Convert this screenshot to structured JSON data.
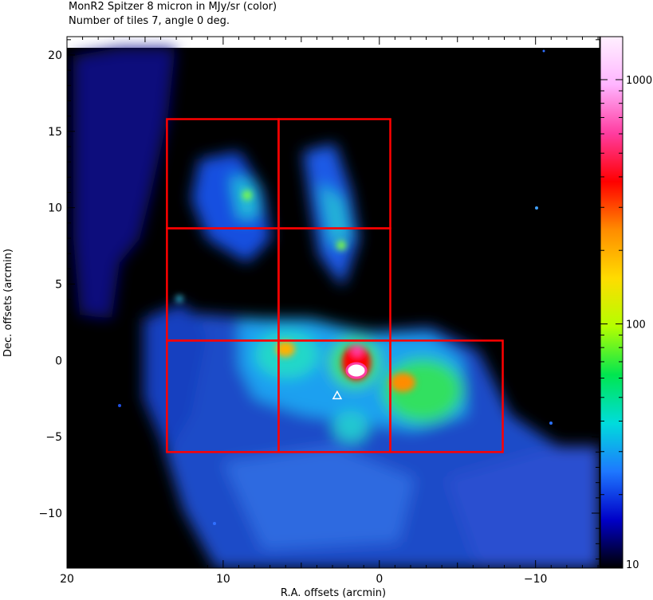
{
  "chart_data": {
    "type": "heatmap",
    "title": "MonR2 Spitzer 8 micron in MJy/sr (color)",
    "subtitle": "Number of tiles 7, angle 0 deg.",
    "xlabel": "R.A. offsets (arcmin)",
    "ylabel": "Dec. offsets (arcmin)",
    "xlim": [
      20,
      -14.1
    ],
    "ylim": [
      -13.6,
      21.2
    ],
    "x_ticks": [
      20,
      10,
      0,
      -10
    ],
    "x_tick_labels": [
      "20",
      "10",
      "0",
      "−10"
    ],
    "y_ticks": [
      20,
      15,
      10,
      5,
      0,
      -5,
      -10
    ],
    "y_tick_labels": [
      "20",
      "15",
      "10",
      "5",
      "0",
      "−5",
      "−10"
    ],
    "colorbar": {
      "scale": "log",
      "range": [
        10,
        1500
      ],
      "ticks": [
        10,
        100,
        1000
      ],
      "tick_labels": [
        "10",
        "100",
        "1000"
      ],
      "colors": [
        "#000000",
        "#0000c8",
        "#1e78ff",
        "#00dcdc",
        "#00e650",
        "#b4ff00",
        "#ffdc00",
        "#ff8c00",
        "#ff0000",
        "#ff3ca0",
        "#ffb4ff",
        "#fff0ff"
      ]
    },
    "tiles": [
      {
        "x1": 13.6,
        "x2": 6.45,
        "y1": 8.65,
        "y2": 15.8
      },
      {
        "x1": 6.45,
        "x2": -0.7,
        "y1": 8.65,
        "y2": 15.8
      },
      {
        "x1": 13.6,
        "x2": 6.45,
        "y1": 1.3,
        "y2": 8.65
      },
      {
        "x1": 6.45,
        "x2": -0.7,
        "y1": 1.3,
        "y2": 8.65
      },
      {
        "x1": 13.6,
        "x2": 6.45,
        "y1": -6.0,
        "y2": 1.3
      },
      {
        "x1": 6.45,
        "x2": -0.7,
        "y1": -6.0,
        "y2": 1.3
      },
      {
        "x1": -0.7,
        "x2": -7.9,
        "y1": -6.0,
        "y2": 1.3
      }
    ],
    "tile_color": "#ff0000",
    "marker": {
      "x": 2.7,
      "y": -2.3,
      "shape": "triangle"
    },
    "grid": false
  }
}
